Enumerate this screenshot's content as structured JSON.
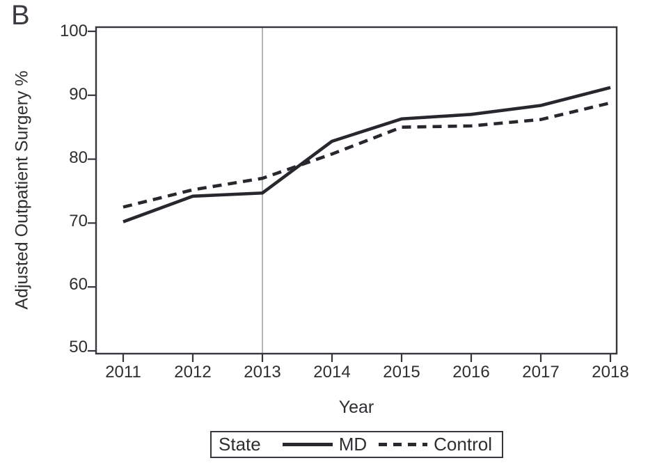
{
  "panel_label": "B",
  "colors": {
    "series_line": "#27272d",
    "frame": "#36363c",
    "text": "#2e2e33",
    "reference_line": "#a3a3a3",
    "background": "#ffffff"
  },
  "chart_data": {
    "type": "line",
    "title": "",
    "xlabel": "Year",
    "ylabel": "Adjusted Outpatient Surgery %",
    "x": [
      2011,
      2012,
      2013,
      2014,
      2015,
      2016,
      2017,
      2018
    ],
    "yticks": [
      100,
      90,
      80,
      70,
      60,
      50
    ],
    "ylim": [
      50,
      100
    ],
    "grid": false,
    "reference_line_x": 2013,
    "series": [
      {
        "name": "MD",
        "style": "solid",
        "values": [
          70.2,
          74.2,
          74.7,
          82.8,
          86.3,
          87.0,
          88.4,
          91.2
        ]
      },
      {
        "name": "Control",
        "style": "dashed",
        "values": [
          72.5,
          75.2,
          77.0,
          80.8,
          85.0,
          85.2,
          86.2,
          88.8
        ]
      }
    ],
    "legend": {
      "title": "State",
      "position": "bottom"
    }
  }
}
